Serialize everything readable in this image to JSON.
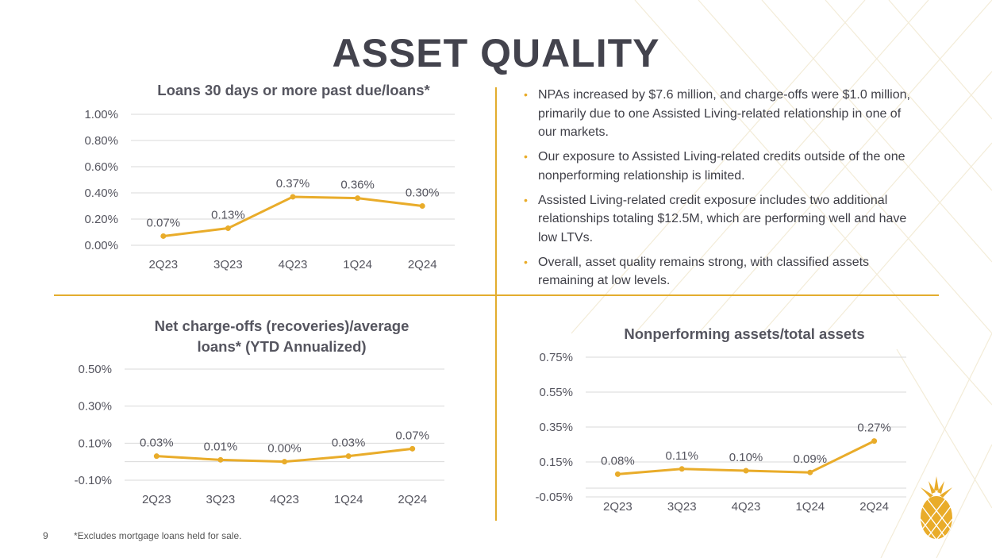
{
  "slide": {
    "title": "ASSET QUALITY",
    "page_number": "9",
    "footnote": "*Excludes mortgage loans held for sale."
  },
  "bullets": [
    "NPAs increased by $7.6 million, and charge-offs were $1.0 million, primarily due to one Assisted Living-related relationship in one of our markets.",
    "Our exposure to Assisted Living-related credits outside of the one nonperforming relationship is limited.",
    "Assisted Living-related credit exposure includes two additional relationships totaling $12.5M, which are performing well and have low LTVs.",
    "Overall, asset quality remains strong, with classified assets remaining at low levels."
  ],
  "colors": {
    "accent": "#e9ac2a",
    "title": "#43434d",
    "text": "#3f3f47",
    "grid": "#d9d9d9"
  },
  "chart_data": [
    {
      "type": "line",
      "title": "Loans 30 days or more past due/loans*",
      "categories": [
        "2Q23",
        "3Q23",
        "4Q23",
        "1Q24",
        "2Q24"
      ],
      "values": [
        0.07,
        0.13,
        0.37,
        0.36,
        0.3
      ],
      "value_labels": [
        "0.07%",
        "0.13%",
        "0.37%",
        "0.36%",
        "0.30%"
      ],
      "yticks": [
        0.0,
        0.2,
        0.4,
        0.6,
        0.8,
        1.0
      ],
      "ytick_labels": [
        "0.00%",
        "0.20%",
        "0.40%",
        "0.60%",
        "0.80%",
        "1.00%"
      ],
      "ylim": [
        0,
        1.0
      ],
      "xlabel": "",
      "ylabel": ""
    },
    {
      "type": "line",
      "title": "Net charge-offs (recoveries)/average loans* (YTD Annualized)",
      "title_lines": [
        "Net charge-offs (recoveries)/average",
        "loans* (YTD Annualized)"
      ],
      "categories": [
        "2Q23",
        "3Q23",
        "4Q23",
        "1Q24",
        "2Q24"
      ],
      "values": [
        0.03,
        0.01,
        0.0,
        0.03,
        0.07
      ],
      "value_labels": [
        "0.03%",
        "0.01%",
        "0.00%",
        "0.03%",
        "0.07%"
      ],
      "yticks": [
        -0.1,
        0.1,
        0.3,
        0.5
      ],
      "ytick_labels": [
        "-0.10%",
        "0.10%",
        "0.30%",
        "0.50%"
      ],
      "ylim": [
        -0.1,
        0.5
      ],
      "xlabel": "",
      "ylabel": ""
    },
    {
      "type": "line",
      "title": "Nonperforming assets/total assets",
      "categories": [
        "2Q23",
        "3Q23",
        "4Q23",
        "1Q24",
        "2Q24"
      ],
      "values": [
        0.08,
        0.11,
        0.1,
        0.09,
        0.27
      ],
      "value_labels": [
        "0.08%",
        "0.11%",
        "0.10%",
        "0.09%",
        "0.27%"
      ],
      "yticks": [
        -0.05,
        0.15,
        0.35,
        0.55,
        0.75
      ],
      "ytick_labels": [
        "-0.05%",
        "0.15%",
        "0.35%",
        "0.55%",
        "0.75%"
      ],
      "ylim": [
        -0.05,
        0.75
      ],
      "xlabel": "",
      "ylabel": ""
    }
  ]
}
